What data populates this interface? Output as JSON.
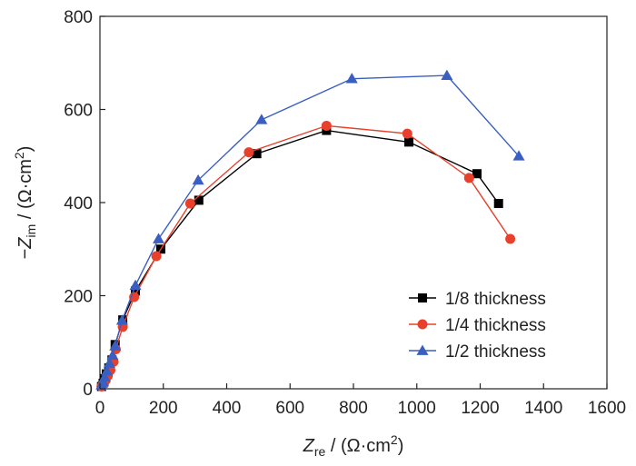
{
  "chart_data": {
    "type": "scatter",
    "xlabel": {
      "symbol": "Z",
      "sub": "re",
      "unit_open": " / (Ω·cm",
      "sup": "2",
      "unit_close": ")"
    },
    "ylabel": {
      "prefix": "−",
      "symbol": "Z",
      "sub": "im",
      "unit_open": " / (Ω·cm",
      "sup": "2",
      "unit_close": ")"
    },
    "xlim": [
      0,
      1600
    ],
    "ylim": [
      0,
      800
    ],
    "xticks": [
      0,
      200,
      400,
      600,
      800,
      1000,
      1200,
      1400,
      1600
    ],
    "yticks": [
      0,
      200,
      400,
      600,
      800
    ],
    "xtick_labels": [
      "0",
      "200",
      "400",
      "600",
      "800",
      "1000",
      "1200",
      "1400",
      "1600"
    ],
    "ytick_labels": [
      "0",
      "200",
      "400",
      "600",
      "800"
    ],
    "grid": false,
    "legend_position": "bottom-right",
    "series": [
      {
        "name": "1/8 thickness",
        "color": "#000000",
        "marker": "square",
        "x": [
          5,
          10,
          15,
          20,
          28,
          38,
          48,
          72,
          112,
          192,
          312,
          495,
          715,
          975,
          1190,
          1258
        ],
        "y": [
          5,
          12,
          22,
          32,
          45,
          62,
          95,
          148,
          210,
          300,
          405,
          505,
          555,
          530,
          462,
          398
        ]
      },
      {
        "name": "1/4 thickness",
        "color": "#e8402a",
        "marker": "circle",
        "x": [
          5,
          12,
          18,
          25,
          33,
          43,
          50,
          72,
          108,
          178,
          285,
          470,
          715,
          970,
          1165,
          1295
        ],
        "y": [
          5,
          10,
          18,
          28,
          40,
          58,
          85,
          133,
          197,
          285,
          398,
          508,
          565,
          548,
          453,
          322
        ]
      },
      {
        "name": "1/2 thickness",
        "color": "#3a5fc0",
        "marker": "triangle",
        "x": [
          5,
          10,
          15,
          22,
          30,
          40,
          48,
          70,
          112,
          185,
          310,
          510,
          795,
          1095,
          1322
        ],
        "y": [
          8,
          15,
          25,
          38,
          55,
          72,
          92,
          147,
          222,
          322,
          448,
          578,
          666,
          673,
          500
        ]
      }
    ]
  }
}
